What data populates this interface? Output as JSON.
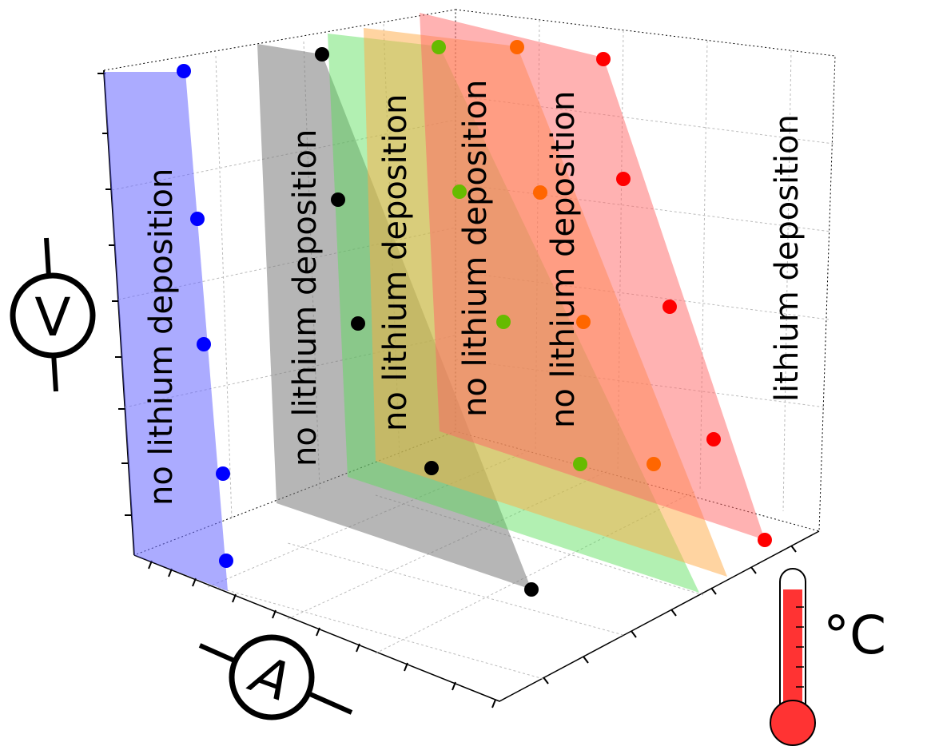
{
  "chart_data": {
    "type": "scatter",
    "title": "",
    "xlabel_symbol": "A",
    "ylabel_symbol": "V",
    "zlabel_unit": "°C",
    "grid": true,
    "region_labels": {
      "safe": "no lithium deposition",
      "unsafe": "lithium deposition"
    },
    "series": [
      {
        "color": "#0000ff",
        "fill": "#6666ff",
        "fill_opacity": 0.55
      },
      {
        "color": "#000000",
        "fill": "#7a7a7a",
        "fill_opacity": 0.55
      },
      {
        "color": "#66bb00",
        "fill": "#55dd55",
        "fill_opacity": 0.45
      },
      {
        "color": "#ff6600",
        "fill": "#ffaa44",
        "fill_opacity": 0.5
      },
      {
        "color": "#ff0000",
        "fill": "#ff6666",
        "fill_opacity": 0.5
      }
    ]
  }
}
